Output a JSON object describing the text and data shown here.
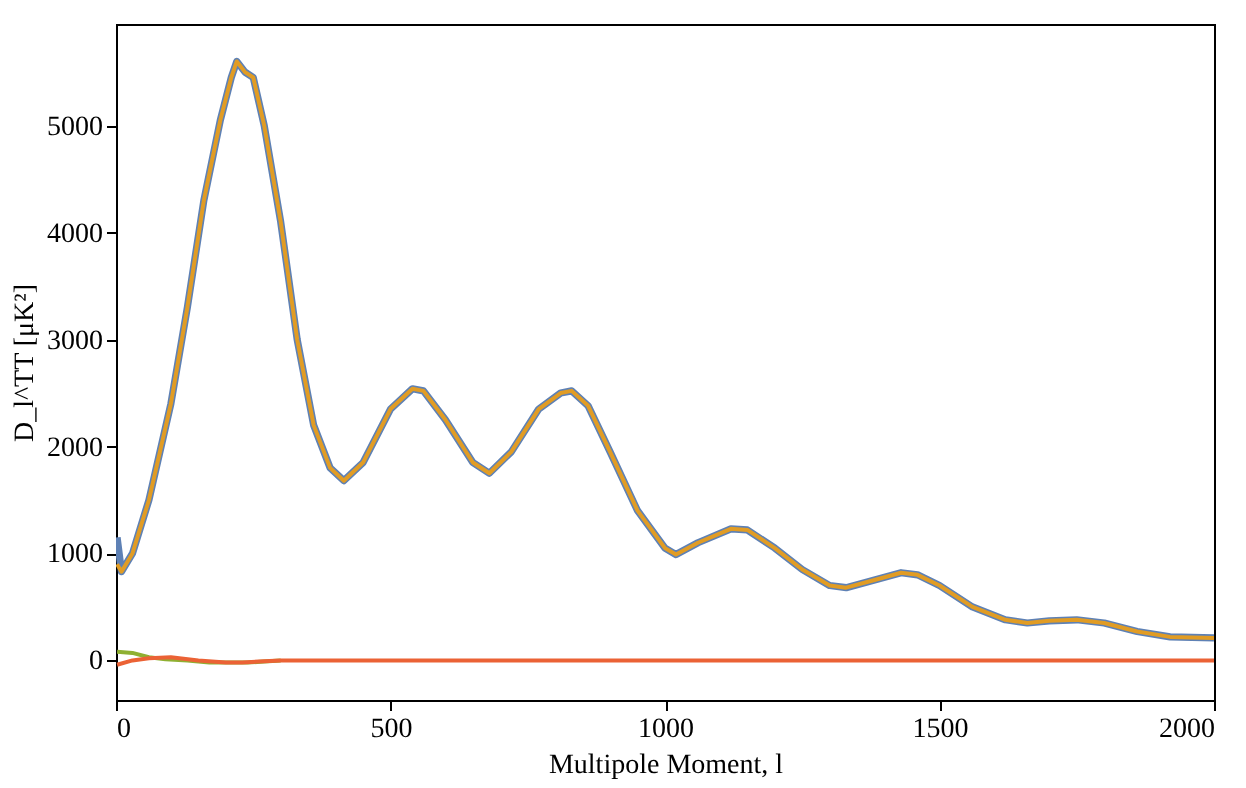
{
  "chart_data": {
    "type": "line",
    "xlabel": "Multipole Moment, l",
    "ylabel": "D_l^TT [μK²]",
    "xlim": [
      0,
      2000
    ],
    "xticks": [
      0,
      500,
      1000,
      1500,
      2000
    ],
    "ylim": [
      -370,
      5950
    ],
    "yticks": [
      0,
      1000,
      2000,
      3000,
      4000,
      5000
    ],
    "grid": false,
    "legend": false,
    "marker": "none",
    "line_style": "solid",
    "series": [
      {
        "color": "#5e81b5",
        "x": [
          2,
          10,
          30,
          60,
          100,
          130,
          160,
          190,
          210,
          220,
          235,
          250,
          270,
          300,
          330,
          360,
          390,
          415,
          450,
          500,
          540,
          560,
          600,
          650,
          680,
          720,
          770,
          810,
          830,
          860,
          900,
          950,
          1000,
          1020,
          1060,
          1120,
          1150,
          1200,
          1250,
          1300,
          1330,
          1380,
          1430,
          1460,
          1500,
          1560,
          1620,
          1660,
          1700,
          1750,
          1800,
          1860,
          1920,
          2000
        ],
        "values": [
          1150,
          830,
          1000,
          1500,
          2400,
          3300,
          4300,
          5050,
          5450,
          5600,
          5500,
          5450,
          5000,
          4100,
          3000,
          2200,
          1800,
          1680,
          1850,
          2350,
          2540,
          2520,
          2250,
          1850,
          1750,
          1950,
          2350,
          2500,
          2520,
          2380,
          1950,
          1400,
          1050,
          990,
          1100,
          1230,
          1220,
          1050,
          850,
          700,
          680,
          750,
          820,
          800,
          700,
          500,
          380,
          350,
          370,
          380,
          350,
          270,
          220,
          210
        ]
      },
      {
        "color": "#e19c24",
        "x": [
          2,
          10,
          30,
          60,
          100,
          130,
          160,
          190,
          210,
          220,
          235,
          250,
          270,
          300,
          330,
          360,
          390,
          415,
          450,
          500,
          540,
          560,
          600,
          650,
          680,
          720,
          770,
          810,
          830,
          860,
          900,
          950,
          1000,
          1020,
          1060,
          1120,
          1150,
          1200,
          1250,
          1300,
          1330,
          1380,
          1430,
          1460,
          1500,
          1560,
          1620,
          1660,
          1700,
          1750,
          1800,
          1860,
          1920,
          2000
        ],
        "values": [
          900,
          830,
          1000,
          1500,
          2400,
          3300,
          4300,
          5050,
          5450,
          5600,
          5500,
          5450,
          5000,
          4100,
          3000,
          2200,
          1800,
          1680,
          1850,
          2350,
          2540,
          2520,
          2250,
          1850,
          1750,
          1950,
          2350,
          2500,
          2520,
          2380,
          1950,
          1400,
          1050,
          990,
          1100,
          1230,
          1220,
          1050,
          850,
          700,
          680,
          750,
          820,
          800,
          700,
          500,
          380,
          350,
          370,
          380,
          350,
          270,
          220,
          210
        ]
      },
      {
        "color": "#8fb032",
        "x": [
          2,
          30,
          60,
          90,
          130,
          170,
          200,
          240,
          270,
          300
        ],
        "values": [
          80,
          70,
          30,
          10,
          0,
          -20,
          -20,
          -20,
          -10,
          0
        ]
      },
      {
        "color": "#eb6235",
        "x": [
          2,
          30,
          60,
          100,
          150,
          200,
          230,
          260,
          300,
          400,
          1000,
          2000
        ],
        "values": [
          -40,
          0,
          20,
          30,
          0,
          -20,
          -20,
          -10,
          0,
          0,
          0,
          0
        ]
      }
    ]
  }
}
